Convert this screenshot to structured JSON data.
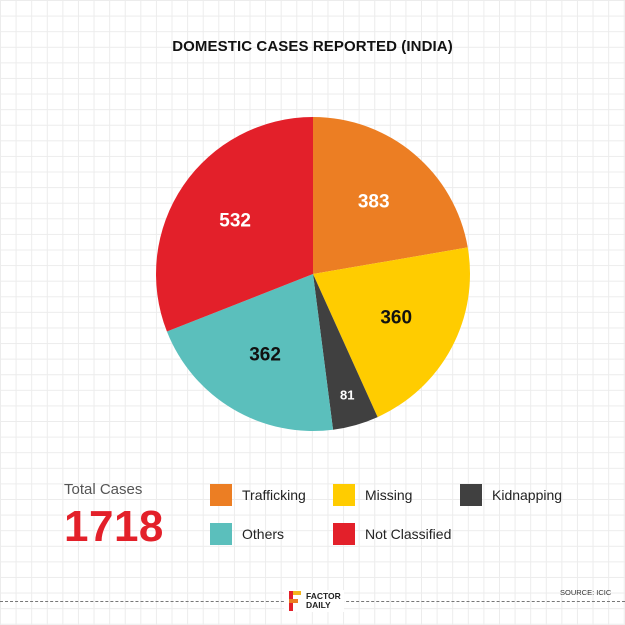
{
  "chart_data": {
    "type": "pie",
    "title": "DOMESTIC CASES REPORTED (INDIA)",
    "slices": [
      {
        "label": "Trafficking",
        "value": 383,
        "color": "#ec7e23",
        "label_color": "#ffffff"
      },
      {
        "label": "Missing",
        "value": 360,
        "color": "#ffcc00",
        "label_color": "#111111"
      },
      {
        "label": "Kidnapping",
        "value": 81,
        "color": "#404040",
        "label_color": "#ffffff"
      },
      {
        "label": "Others",
        "value": 362,
        "color": "#5bbfbc",
        "label_color": "#111111"
      },
      {
        "label": "Not Classified",
        "value": 532,
        "color": "#e3202a",
        "label_color": "#ffffff"
      }
    ],
    "start_angle_deg": 0,
    "direction": "clockwise",
    "legend_position": "bottom"
  },
  "summary": {
    "total_label": "Total Cases",
    "total_value": "1718"
  },
  "legend": [
    {
      "label": "Trafficking",
      "color": "#ec7e23"
    },
    {
      "label": "Missing",
      "color": "#ffcc00"
    },
    {
      "label": "Kidnapping",
      "color": "#404040"
    },
    {
      "label": "Others",
      "color": "#5bbfbc"
    },
    {
      "label": "Not Classified",
      "color": "#e3202a"
    }
  ],
  "footer": {
    "logo_line1": "FACTOR",
    "logo_line2": "DAILY",
    "source": "SOURCE: ICIC"
  }
}
